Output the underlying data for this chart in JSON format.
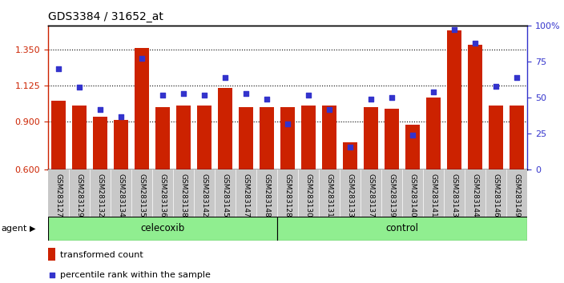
{
  "title": "GDS3384 / 31652_at",
  "samples": [
    "GSM283127",
    "GSM283129",
    "GSM283132",
    "GSM283134",
    "GSM283135",
    "GSM283136",
    "GSM283138",
    "GSM283142",
    "GSM283145",
    "GSM283147",
    "GSM283148",
    "GSM283128",
    "GSM283130",
    "GSM283131",
    "GSM283133",
    "GSM283137",
    "GSM283139",
    "GSM283140",
    "GSM283141",
    "GSM283143",
    "GSM283144",
    "GSM283146",
    "GSM283149"
  ],
  "bar_values": [
    1.03,
    1.0,
    0.93,
    0.91,
    1.36,
    0.99,
    1.0,
    1.0,
    1.11,
    0.99,
    0.99,
    0.99,
    1.0,
    1.0,
    0.77,
    0.99,
    0.98,
    0.88,
    1.05,
    1.47,
    1.38,
    1.0,
    1.0
  ],
  "dot_values": [
    70,
    57,
    42,
    37,
    77,
    52,
    53,
    52,
    64,
    53,
    49,
    32,
    52,
    42,
    16,
    49,
    50,
    24,
    54,
    97,
    88,
    58,
    64
  ],
  "celecoxib_count": 11,
  "control_count": 12,
  "bar_color": "#CC2200",
  "dot_color": "#3333CC",
  "ylim_left": [
    0.6,
    1.5
  ],
  "ylim_right": [
    0,
    100
  ],
  "yticks_left": [
    0.6,
    0.9,
    1.125,
    1.35
  ],
  "yticks_right": [
    0,
    25,
    50,
    75,
    100
  ],
  "hlines": [
    0.9,
    1.125,
    1.35
  ],
  "bg_gray": "#c8c8c8",
  "bg_celecoxib": "#90EE90",
  "bg_control": "#90EE90",
  "legend_bar_label": "transformed count",
  "legend_dot_label": "percentile rank within the sample",
  "agent_label": "agent"
}
